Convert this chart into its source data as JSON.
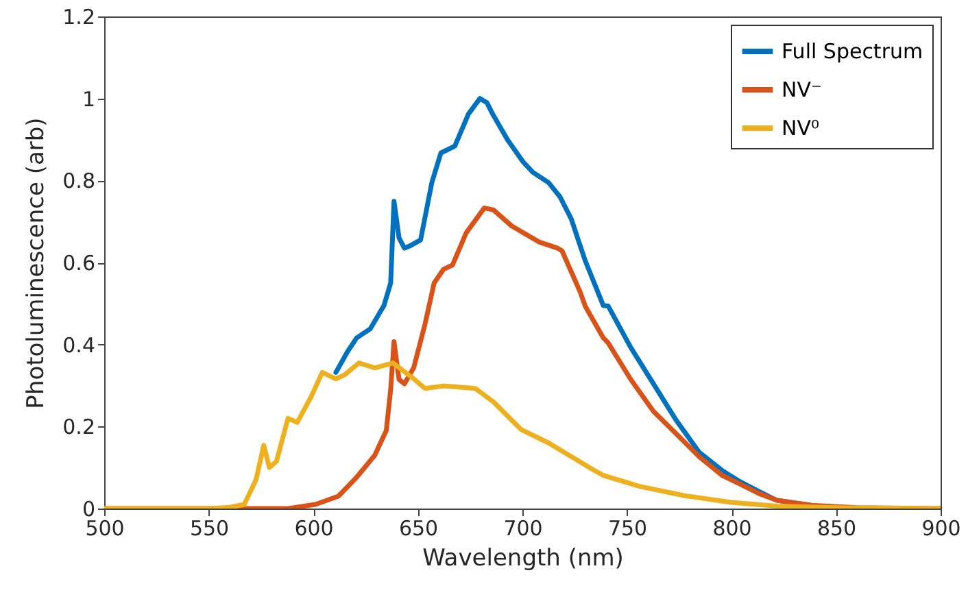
{
  "chart_data": {
    "type": "line",
    "xlabel": "Wavelength (nm)",
    "ylabel": "Photoluminescence (arb)",
    "xlim": [
      500,
      900
    ],
    "xticks": [
      500,
      550,
      600,
      650,
      700,
      750,
      800,
      850,
      900
    ],
    "ylim": [
      0,
      1.2
    ],
    "yticks": [
      0,
      0.2,
      0.4,
      0.6,
      0.8,
      1,
      1.2
    ],
    "grid": false,
    "legend": "top right",
    "marker": "none",
    "line_style": "solid",
    "series": [
      {
        "name": "Full Spectrum",
        "color": "#0072bd",
        "x": [
          610.8,
          616.3,
          620.7,
          627.2,
          633.8,
          637,
          638.6,
          641,
          643.6,
          646,
          651.3,
          656.7,
          661,
          667.7,
          674.2,
          679.7,
          683,
          686,
          692.8,
          700.4,
          705,
          712.5,
          718,
          723.4,
          727.7,
          730,
          738.7,
          741,
          751.8,
          762.7,
          773.6,
          784.6,
          795.5,
          804.3,
          813,
          821.7,
          838
        ],
        "values": [
          0.332,
          0.382,
          0.416,
          0.438,
          0.495,
          0.55,
          0.749,
          0.66,
          0.635,
          0.64,
          0.655,
          0.795,
          0.867,
          0.884,
          0.962,
          1.0,
          0.99,
          0.96,
          0.9,
          0.845,
          0.82,
          0.795,
          0.76,
          0.706,
          0.64,
          0.605,
          0.495,
          0.494,
          0.393,
          0.304,
          0.215,
          0.137,
          0.093,
          0.065,
          0.042,
          0.02,
          0.008
        ]
      },
      {
        "name": "NV⁻",
        "color": "#d95319",
        "x": [
          500,
          560,
          588,
          601,
          612,
          620.7,
          629.4,
          634.9,
          637,
          638.6,
          641,
          643.6,
          648,
          653.4,
          657.8,
          662.2,
          666.6,
          673.1,
          681.8,
          686.2,
          694.9,
          708,
          716.9,
          719,
          727.7,
          730,
          738.7,
          740.9,
          751.8,
          762.7,
          773.6,
          784.6,
          795.5,
          804.3,
          813,
          821.7,
          838,
          860,
          900
        ],
        "values": [
          0,
          0,
          0.0,
          0.01,
          0.03,
          0.076,
          0.13,
          0.19,
          0.29,
          0.407,
          0.315,
          0.304,
          0.343,
          0.449,
          0.55,
          0.583,
          0.594,
          0.672,
          0.733,
          0.728,
          0.689,
          0.65,
          0.635,
          0.628,
          0.527,
          0.494,
          0.416,
          0.405,
          0.315,
          0.237,
          0.182,
          0.126,
          0.081,
          0.059,
          0.037,
          0.02,
          0.008,
          0.002,
          0
        ]
      },
      {
        "name": "NV⁰",
        "color": "#edb120",
        "x": [
          500,
          550,
          560,
          567,
          572.6,
          576.3,
          579,
          582.4,
          587.9,
          592.3,
          598.8,
          604.3,
          610.8,
          615.2,
          621.8,
          629.4,
          638.1,
          646.9,
          653.4,
          662.2,
          677.5,
          686.2,
          699.3,
          712.5,
          725.6,
          734,
          738.7,
          756,
          778,
          799.8,
          821.7,
          850,
          900
        ],
        "values": [
          0,
          0,
          0.003,
          0.01,
          0.07,
          0.154,
          0.1,
          0.115,
          0.22,
          0.21,
          0.271,
          0.332,
          0.316,
          0.327,
          0.355,
          0.343,
          0.355,
          0.321,
          0.293,
          0.299,
          0.293,
          0.26,
          0.193,
          0.16,
          0.12,
          0.094,
          0.081,
          0.054,
          0.031,
          0.015,
          0.006,
          0.002,
          0
        ]
      }
    ]
  }
}
